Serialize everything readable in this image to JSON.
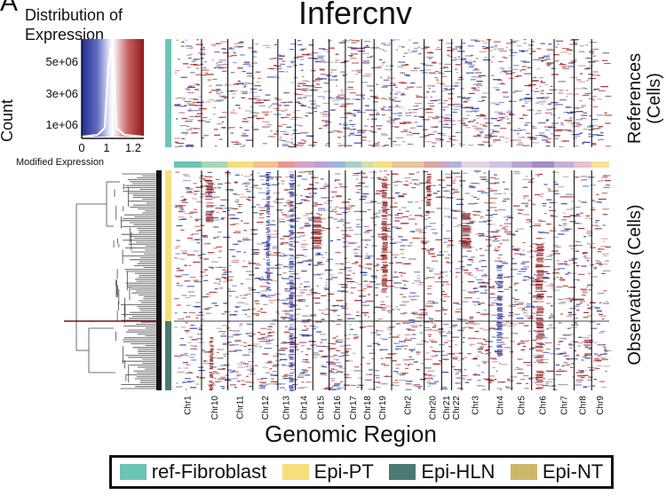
{
  "chart_data": {
    "type": "heatmap",
    "title": "Infercnv",
    "panel_label": "A",
    "xlabel": "Genomic Region",
    "ylabels": [
      "References (Cells)",
      "Observations (Cells)"
    ],
    "chromosomes": [
      "Chr1",
      "Chr10",
      "Chr11",
      "Chr12",
      "Chr13",
      "Chr14",
      "Chr15",
      "Chr16",
      "Chr17",
      "Chr18",
      "Chr19",
      "Chr2",
      "Chr20",
      "Chr21",
      "Chr22",
      "Chr3",
      "Chr4",
      "Chr5",
      "Chr6",
      "Chr7",
      "Chr8",
      "Chr9"
    ],
    "color_key": {
      "title": "Distribution of Expression",
      "ylabel": "Count",
      "yticks": [
        "5e+06",
        "3e+06",
        "1e+06"
      ],
      "xlabel": "Modified Expression",
      "xticks": [
        "0",
        "1",
        "1.2"
      ],
      "low_color": "#1f2f8f",
      "mid_color": "#ffffff",
      "high_color": "#8f1a1a"
    },
    "legend": [
      {
        "label": "ref-Fibroblast",
        "color": "#6cc4b7"
      },
      {
        "label": "Epi-PT",
        "color": "#f7df7c"
      },
      {
        "label": "Epi-HLN",
        "color": "#4a7a72"
      },
      {
        "label": "Epi-NT",
        "color": "#cdb76a"
      }
    ]
  }
}
